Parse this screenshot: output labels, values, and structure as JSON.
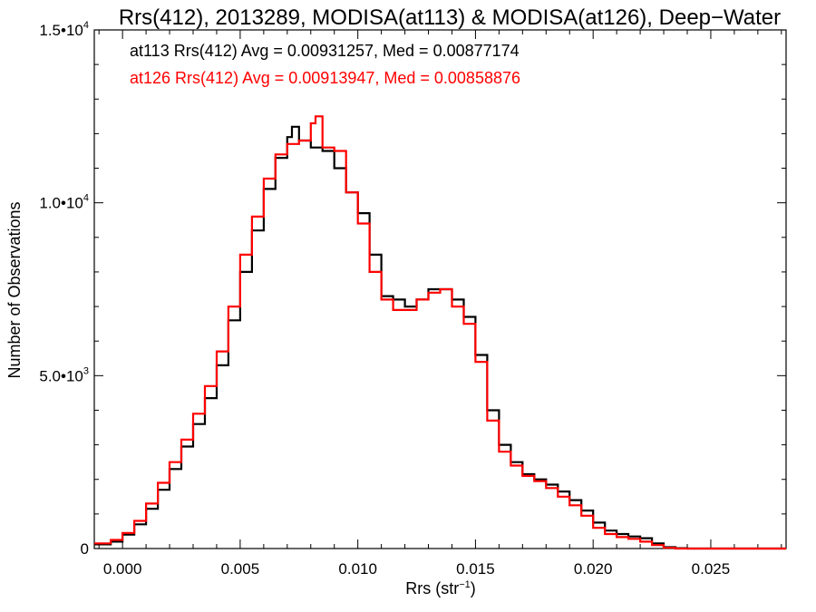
{
  "chart_data": {
    "type": "line",
    "step": true,
    "title": "Rrs(412), 2013289, MODISA(at113) & MODISA(at126), Deep−Water",
    "xlabel": "Rrs (str",
    "xlabel_sup": "−1",
    "xlabel_end": ")",
    "ylabel": "Number of Observations",
    "xlim": [
      -0.0012,
      0.0282
    ],
    "ylim": [
      0,
      15000
    ],
    "x_ticks": [
      {
        "value": 0.0,
        "label": "0.000"
      },
      {
        "value": 0.005,
        "label": "0.005"
      },
      {
        "value": 0.01,
        "label": "0.010"
      },
      {
        "value": 0.015,
        "label": "0.015"
      },
      {
        "value": 0.02,
        "label": "0.020"
      },
      {
        "value": 0.025,
        "label": "0.025"
      }
    ],
    "y_ticks": [
      {
        "value": 0,
        "base": "0",
        "exp": ""
      },
      {
        "value": 5000,
        "base": "5.0•10",
        "exp": "3"
      },
      {
        "value": 10000,
        "base": "1.0•10",
        "exp": "4"
      },
      {
        "value": 15000,
        "base": "1.5•10",
        "exp": "4"
      }
    ],
    "annotations": [
      {
        "text": "at113 Rrs(412) Avg = 0.00931257, Med = 0.00877174",
        "color": "#000000"
      },
      {
        "text": "at126 Rrs(412) Avg = 0.00913947, Med = 0.00858876",
        "color": "#ff0000"
      }
    ],
    "series": [
      {
        "color": "#000000",
        "x": [
          -0.0012,
          -0.0005,
          0.0,
          0.0005,
          0.001,
          0.0015,
          0.002,
          0.0025,
          0.003,
          0.0035,
          0.004,
          0.0045,
          0.005,
          0.0055,
          0.006,
          0.0065,
          0.007,
          0.0072,
          0.0075,
          0.008,
          0.0085,
          0.009,
          0.0095,
          0.01,
          0.0105,
          0.011,
          0.0115,
          0.012,
          0.0125,
          0.013,
          0.0135,
          0.014,
          0.0145,
          0.015,
          0.0155,
          0.016,
          0.0165,
          0.017,
          0.0175,
          0.018,
          0.0185,
          0.019,
          0.0195,
          0.02,
          0.0205,
          0.021,
          0.0215,
          0.022,
          0.0225,
          0.023,
          0.0235,
          0.024,
          0.025,
          0.026,
          0.027,
          0.0282
        ],
        "y": [
          120,
          200,
          400,
          700,
          1150,
          1700,
          2300,
          2950,
          3600,
          4350,
          5300,
          6600,
          8000,
          9200,
          10400,
          11300,
          11900,
          12200,
          11800,
          11600,
          11500,
          11000,
          10300,
          9700,
          8500,
          7300,
          7200,
          7000,
          7200,
          7500,
          7500,
          7200,
          6700,
          5600,
          4000,
          3000,
          2500,
          2150,
          2000,
          1850,
          1650,
          1400,
          1100,
          750,
          520,
          420,
          350,
          300,
          150,
          40,
          10,
          0,
          0,
          0,
          0,
          0
        ]
      },
      {
        "color": "#ff0000",
        "x": [
          -0.0012,
          -0.0005,
          0.0,
          0.0005,
          0.001,
          0.0015,
          0.002,
          0.0025,
          0.003,
          0.0035,
          0.004,
          0.0045,
          0.005,
          0.0055,
          0.006,
          0.0065,
          0.007,
          0.0075,
          0.008,
          0.0082,
          0.0085,
          0.009,
          0.0095,
          0.01,
          0.0105,
          0.011,
          0.0115,
          0.012,
          0.0125,
          0.013,
          0.0135,
          0.014,
          0.0145,
          0.015,
          0.0155,
          0.016,
          0.0165,
          0.017,
          0.0175,
          0.018,
          0.0185,
          0.019,
          0.0195,
          0.02,
          0.0205,
          0.021,
          0.0215,
          0.022,
          0.0225,
          0.023,
          0.0235,
          0.024,
          0.025,
          0.026,
          0.027,
          0.0282
        ],
        "y": [
          150,
          250,
          450,
          800,
          1300,
          1900,
          2500,
          3150,
          3900,
          4700,
          5700,
          7000,
          8500,
          9600,
          10700,
          11400,
          11700,
          11800,
          12300,
          12500,
          11600,
          11500,
          10300,
          9400,
          8000,
          7200,
          6900,
          6900,
          7200,
          7400,
          7500,
          7000,
          6500,
          5400,
          3700,
          2800,
          2400,
          2100,
          1950,
          1750,
          1500,
          1250,
          950,
          600,
          420,
          330,
          280,
          200,
          100,
          20,
          0,
          0,
          0,
          0,
          0,
          0
        ]
      }
    ]
  }
}
